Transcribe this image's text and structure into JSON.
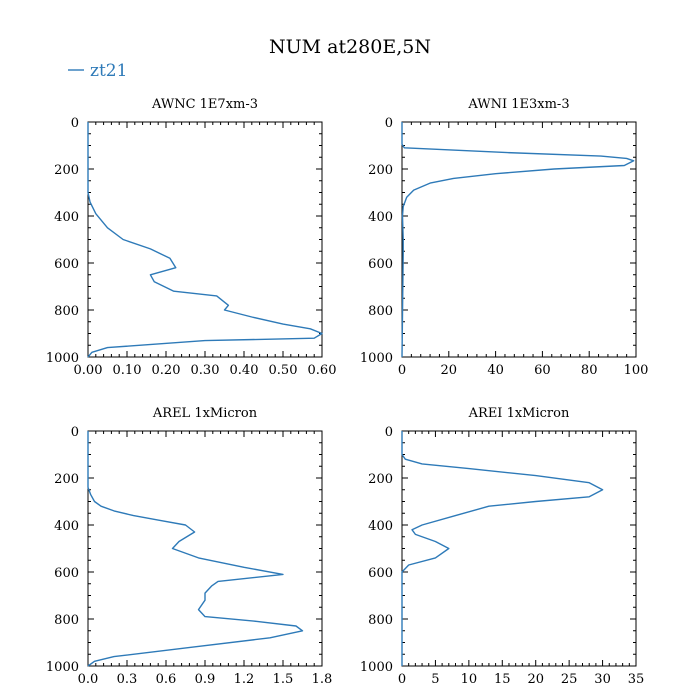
{
  "figure": {
    "title": "NUM at280E,5N",
    "legend": {
      "label": "zt21",
      "color": "#2e7ab8"
    }
  },
  "chart_data": [
    {
      "type": "line",
      "title": "AWNC  1E7xm-3",
      "xlim": [
        0,
        0.6
      ],
      "ylim": [
        0,
        1000
      ],
      "xticks": [
        "0.00",
        "0.10",
        "0.20",
        "0.30",
        "0.40",
        "0.50",
        "0.60"
      ],
      "xtick_values": [
        0,
        0.1,
        0.2,
        0.3,
        0.4,
        0.5,
        0.6
      ],
      "yticks": [
        "0",
        "200",
        "400",
        "600",
        "800",
        "1000"
      ],
      "ytick_values": [
        0,
        200,
        400,
        600,
        800,
        1000
      ],
      "series": [
        {
          "name": "zt21",
          "x": [
            0,
            0,
            0.005,
            0.02,
            0.05,
            0.09,
            0.16,
            0.21,
            0.225,
            0.16,
            0.17,
            0.22,
            0.33,
            0.36,
            0.35,
            0.42,
            0.5,
            0.57,
            0.6,
            0.58,
            0.3,
            0.05,
            0.01,
            0
          ],
          "y": [
            0,
            300,
            340,
            390,
            450,
            500,
            540,
            580,
            620,
            650,
            680,
            720,
            740,
            780,
            800,
            830,
            860,
            880,
            900,
            920,
            930,
            960,
            980,
            1000
          ]
        }
      ]
    },
    {
      "type": "line",
      "title": "AWNI  1E3xm-3",
      "xlim": [
        0,
        100
      ],
      "ylim": [
        0,
        1000
      ],
      "xticks": [
        "0",
        "20",
        "40",
        "60",
        "80",
        "100"
      ],
      "xtick_values": [
        0,
        20,
        40,
        60,
        80,
        100
      ],
      "yticks": [
        "0",
        "200",
        "400",
        "600",
        "800",
        "1000"
      ],
      "ytick_values": [
        0,
        200,
        400,
        600,
        800,
        1000
      ],
      "series": [
        {
          "name": "zt21",
          "x": [
            0,
            0,
            1,
            45,
            85,
            96,
            99,
            95,
            65,
            40,
            22,
            12,
            5,
            2,
            0.5,
            0.2,
            0.5,
            0.5,
            0
          ],
          "y": [
            0,
            95,
            110,
            130,
            145,
            155,
            165,
            185,
            200,
            220,
            240,
            260,
            290,
            320,
            360,
            400,
            500,
            560,
            1000
          ]
        }
      ]
    },
    {
      "type": "line",
      "title": "AREL  1xMicron",
      "xlim": [
        0,
        1.8
      ],
      "ylim": [
        0,
        1000
      ],
      "xticks": [
        "0.0",
        "0.3",
        "0.6",
        "0.9",
        "1.2",
        "1.5",
        "1.8"
      ],
      "xtick_values": [
        0,
        0.3,
        0.6,
        0.9,
        1.2,
        1.5,
        1.8
      ],
      "yticks": [
        "0",
        "200",
        "400",
        "600",
        "800",
        "1000"
      ],
      "ytick_values": [
        0,
        200,
        400,
        600,
        800,
        1000
      ],
      "series": [
        {
          "name": "zt21",
          "x": [
            0,
            0,
            0.02,
            0.05,
            0.1,
            0.2,
            0.35,
            0.55,
            0.75,
            0.82,
            0.7,
            0.65,
            0.85,
            1.2,
            1.5,
            1.0,
            0.95,
            0.9,
            0.9,
            0.85,
            0.9,
            1.3,
            1.6,
            1.65,
            1.4,
            0.8,
            0.2,
            0.05,
            0
          ],
          "y": [
            0,
            240,
            270,
            300,
            320,
            340,
            360,
            380,
            400,
            430,
            470,
            500,
            540,
            580,
            610,
            640,
            660,
            690,
            720,
            760,
            790,
            810,
            830,
            850,
            880,
            920,
            960,
            980,
            1000
          ]
        }
      ]
    },
    {
      "type": "line",
      "title": "AREI  1xMicron",
      "xlim": [
        0,
        35
      ],
      "ylim": [
        0,
        1000
      ],
      "xticks": [
        "0",
        "5",
        "10",
        "15",
        "20",
        "25",
        "30",
        "35"
      ],
      "xtick_values": [
        0,
        5,
        10,
        15,
        20,
        25,
        30,
        35
      ],
      "yticks": [
        "0",
        "200",
        "400",
        "600",
        "800",
        "1000"
      ],
      "ytick_values": [
        0,
        200,
        400,
        600,
        800,
        1000
      ],
      "series": [
        {
          "name": "zt21",
          "x": [
            0,
            0,
            0.5,
            3,
            10,
            20,
            28,
            30,
            28,
            20,
            13,
            8,
            3,
            1.5,
            2,
            5,
            7,
            5,
            1,
            0,
            0
          ],
          "y": [
            0,
            100,
            120,
            140,
            160,
            190,
            220,
            250,
            280,
            300,
            320,
            360,
            400,
            420,
            440,
            470,
            500,
            540,
            570,
            600,
            1000
          ]
        }
      ]
    }
  ]
}
